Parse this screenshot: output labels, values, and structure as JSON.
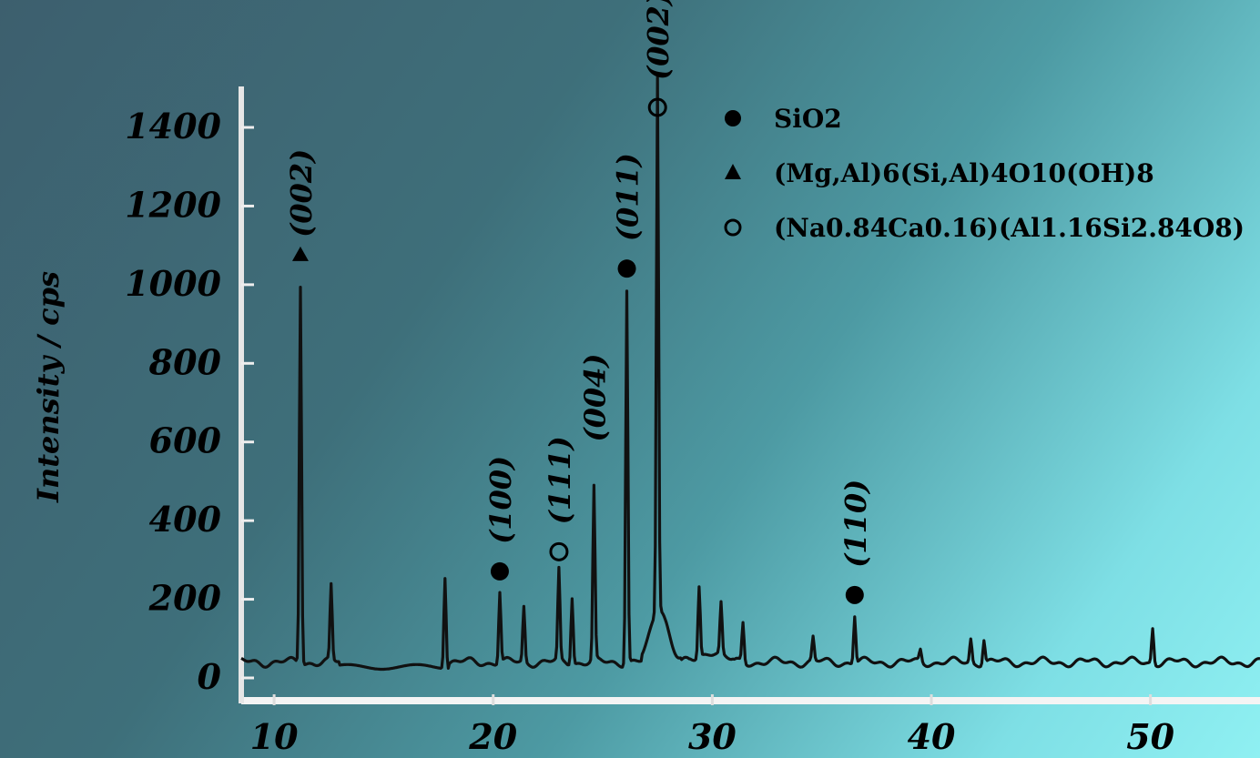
{
  "chart_data": {
    "type": "line",
    "title": "",
    "xlabel": "",
    "ylabel": "Intensity / cps",
    "xlim": [
      8.5,
      55
    ],
    "ylim": [
      0,
      1400
    ],
    "x_ticks": [
      10,
      20,
      30,
      40,
      50
    ],
    "y_ticks": [
      0,
      200,
      400,
      600,
      800,
      1000,
      1200,
      1400
    ],
    "legend_position": "top-right",
    "legend": [
      {
        "marker": "circle",
        "label": "SiO2"
      },
      {
        "marker": "triangle",
        "label": "(Mg,Al)6(Si,Al)4O10(OH)8"
      },
      {
        "marker": "open-circle",
        "label": "(Na0.84Ca0.16)(Al1.16Si2.84O8)"
      }
    ],
    "peaks": [
      {
        "x": 11.2,
        "y": 1000,
        "marker": "triangle",
        "label": "(002)"
      },
      {
        "x": 12.6,
        "y": 230,
        "marker": "",
        "label": ""
      },
      {
        "x": 17.8,
        "y": 270,
        "marker": "",
        "label": ""
      },
      {
        "x": 20.3,
        "y": 220,
        "marker": "circle",
        "label": "(100)"
      },
      {
        "x": 21.4,
        "y": 180,
        "marker": "",
        "label": ""
      },
      {
        "x": 23.0,
        "y": 270,
        "marker": "open-circle",
        "label": "(111)"
      },
      {
        "x": 23.6,
        "y": 210,
        "marker": "",
        "label": ""
      },
      {
        "x": 24.6,
        "y": 480,
        "marker": "",
        "label": "(004)"
      },
      {
        "x": 26.1,
        "y": 990,
        "marker": "circle",
        "label": "(011)"
      },
      {
        "x": 27.5,
        "y": 1400,
        "marker": "open-circle",
        "label": "(002)"
      },
      {
        "x": 29.4,
        "y": 220,
        "marker": "",
        "label": ""
      },
      {
        "x": 30.4,
        "y": 170,
        "marker": "",
        "label": ""
      },
      {
        "x": 31.4,
        "y": 140,
        "marker": "",
        "label": ""
      },
      {
        "x": 34.6,
        "y": 100,
        "marker": "",
        "label": ""
      },
      {
        "x": 36.5,
        "y": 160,
        "marker": "circle",
        "label": "(110)"
      },
      {
        "x": 39.5,
        "y": 70,
        "marker": "",
        "label": ""
      },
      {
        "x": 41.8,
        "y": 100,
        "marker": "",
        "label": ""
      },
      {
        "x": 42.4,
        "y": 100,
        "marker": "",
        "label": ""
      },
      {
        "x": 50.1,
        "y": 130,
        "marker": "",
        "label": ""
      }
    ],
    "baseline": 40
  }
}
